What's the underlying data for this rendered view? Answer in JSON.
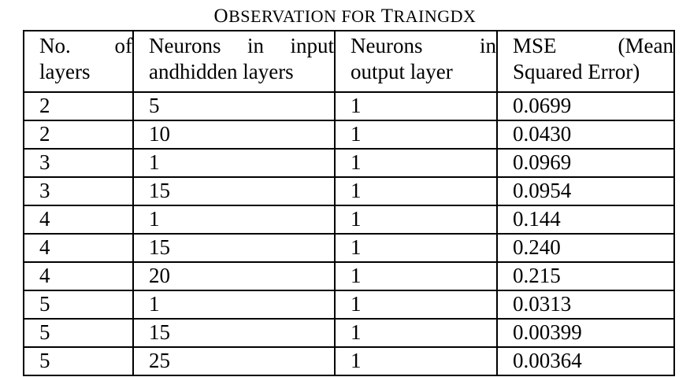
{
  "caption": {
    "first_letter": "O",
    "first_rest": "BSERVATION FOR ",
    "second_letter": "T",
    "second_rest": "RAINGDX"
  },
  "table": {
    "headers": [
      "No. of layers",
      "Neurons in input andhidden layers",
      "Neurons in output layer",
      "MSE (Mean Squared Error)"
    ],
    "rows": [
      [
        "2",
        "5",
        "1",
        "0.0699"
      ],
      [
        "2",
        "10",
        "1",
        "0.0430"
      ],
      [
        "3",
        "1",
        "1",
        "0.0969"
      ],
      [
        "3",
        "15",
        "1",
        "0.0954"
      ],
      [
        "4",
        "1",
        "1",
        "0.144"
      ],
      [
        "4",
        "15",
        "1",
        "0.240"
      ],
      [
        "4",
        "20",
        "1",
        "0.215"
      ],
      [
        "5",
        "1",
        "1",
        "0.0313"
      ],
      [
        "5",
        "15",
        "1",
        "0.00399"
      ],
      [
        "5",
        "25",
        "1",
        "0.00364"
      ]
    ]
  }
}
